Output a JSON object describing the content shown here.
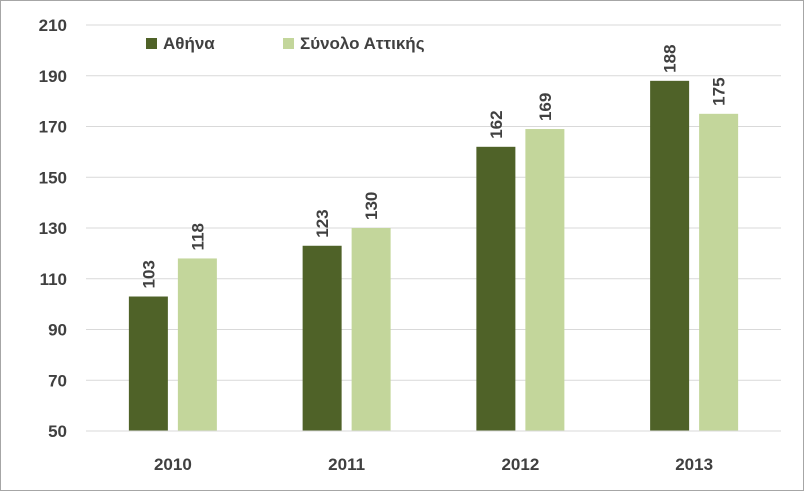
{
  "chart_data": {
    "type": "bar",
    "title": "",
    "xlabel": "",
    "ylabel": "",
    "categories": [
      "2010",
      "2011",
      "2012",
      "2013"
    ],
    "series": [
      {
        "name": "Αθήνα",
        "values": [
          103,
          123,
          162,
          188
        ],
        "color": "#4f6228"
      },
      {
        "name": "Σύνολο Αττικής",
        "values": [
          118,
          130,
          169,
          175
        ],
        "color": "#c3d69b"
      }
    ],
    "ylim": [
      50,
      210
    ],
    "yticks": [
      50,
      70,
      90,
      110,
      130,
      150,
      170,
      190,
      210
    ],
    "grid": true,
    "legend": "top"
  }
}
